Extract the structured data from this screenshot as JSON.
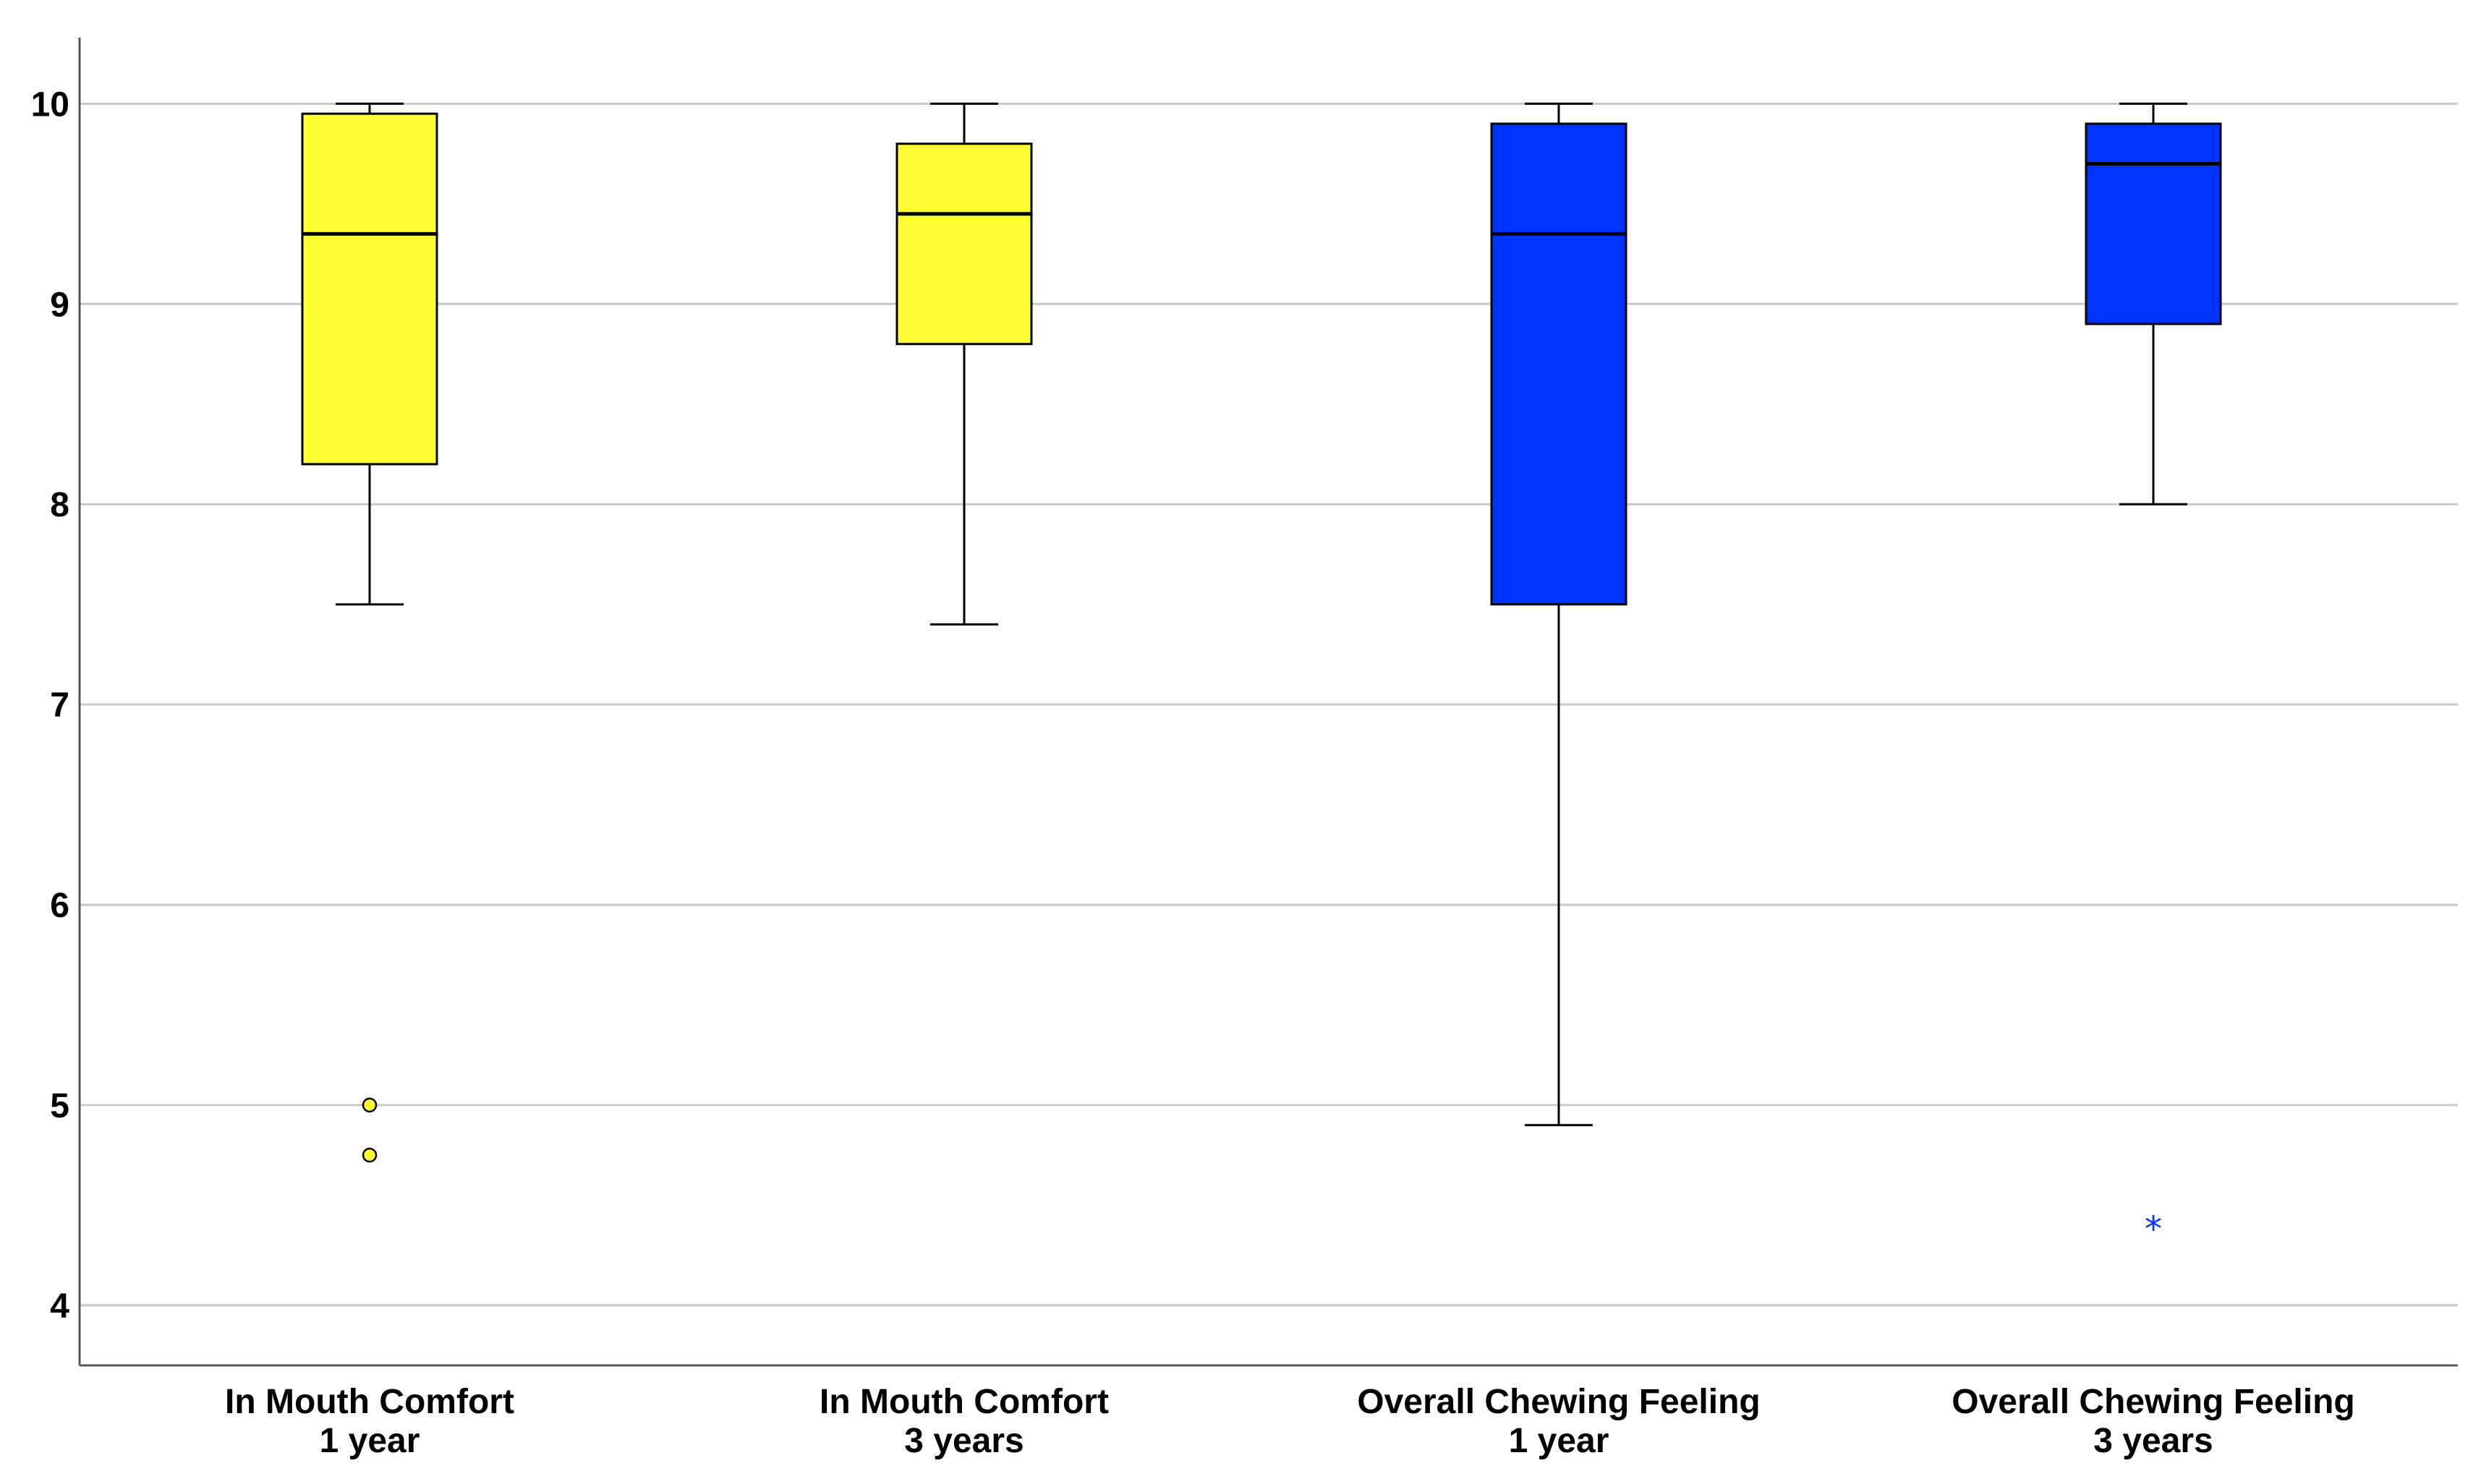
{
  "chart_data": {
    "type": "box",
    "title": "",
    "xlabel": "",
    "ylabel": "",
    "ylim": [
      3.7,
      10.33
    ],
    "yticks": [
      4,
      5,
      6,
      7,
      8,
      9,
      10
    ],
    "grid": "horizontal",
    "categories": [
      {
        "line1": "In Mouth Comfort",
        "line2": "1 year"
      },
      {
        "line1": "In Mouth Comfort",
        "line2": "3 years"
      },
      {
        "line1": "Overall Chewing Feeling",
        "line2": "1 year"
      },
      {
        "line1": "Overall Chewing Feeling",
        "line2": "3 years"
      }
    ],
    "boxes": [
      {
        "color": "#ffff33",
        "whisker_low": 7.5,
        "q1": 8.2,
        "median": 9.35,
        "q3": 9.95,
        "whisker_high": 10.0,
        "outliers": [
          {
            "value": 5.0,
            "marker": "circle"
          },
          {
            "value": 4.75,
            "marker": "circle"
          }
        ]
      },
      {
        "color": "#ffff33",
        "whisker_low": 7.4,
        "q1": 8.8,
        "median": 9.45,
        "q3": 9.8,
        "whisker_high": 10.0,
        "outliers": []
      },
      {
        "color": "#0033ff",
        "whisker_low": 4.9,
        "q1": 7.5,
        "median": 9.35,
        "q3": 9.9,
        "whisker_high": 10.0,
        "outliers": []
      },
      {
        "color": "#0033ff",
        "whisker_low": 8.0,
        "q1": 8.9,
        "median": 9.7,
        "q3": 9.9,
        "whisker_high": 10.0,
        "outliers": [
          {
            "value": 4.4,
            "marker": "star"
          }
        ]
      }
    ]
  }
}
